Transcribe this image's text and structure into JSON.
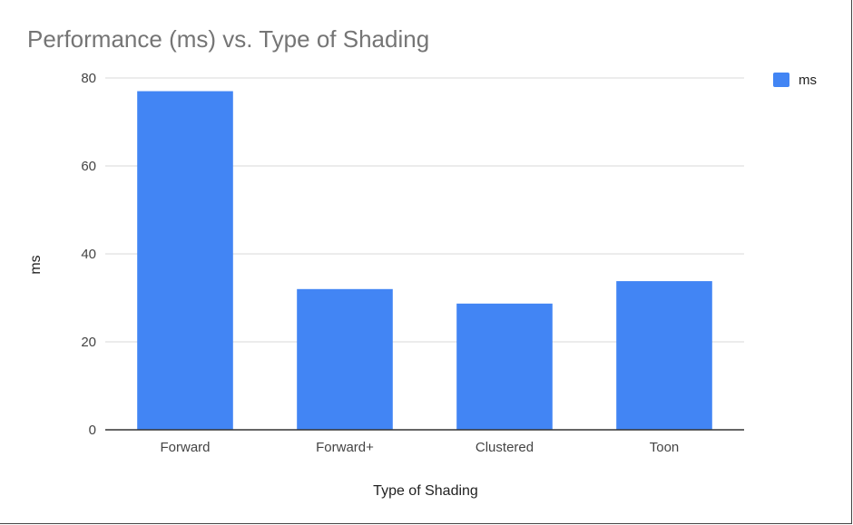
{
  "chart_data": {
    "type": "bar",
    "title": "Performance (ms) vs. Type of Shading",
    "xlabel": "Type of Shading",
    "ylabel": "ms",
    "categories": [
      "Forward",
      "Forward+",
      "Clustered",
      "Toon"
    ],
    "series": [
      {
        "name": "ms",
        "values": [
          77,
          32,
          28.7,
          33.8
        ],
        "color": "#4285f4"
      }
    ],
    "ylim": [
      0,
      80
    ],
    "yticks": [
      0,
      20,
      40,
      60,
      80
    ],
    "ytick_labels": [
      "0",
      "20",
      "40",
      "60",
      "80"
    ],
    "grid": true,
    "legend_position": "top-right"
  }
}
